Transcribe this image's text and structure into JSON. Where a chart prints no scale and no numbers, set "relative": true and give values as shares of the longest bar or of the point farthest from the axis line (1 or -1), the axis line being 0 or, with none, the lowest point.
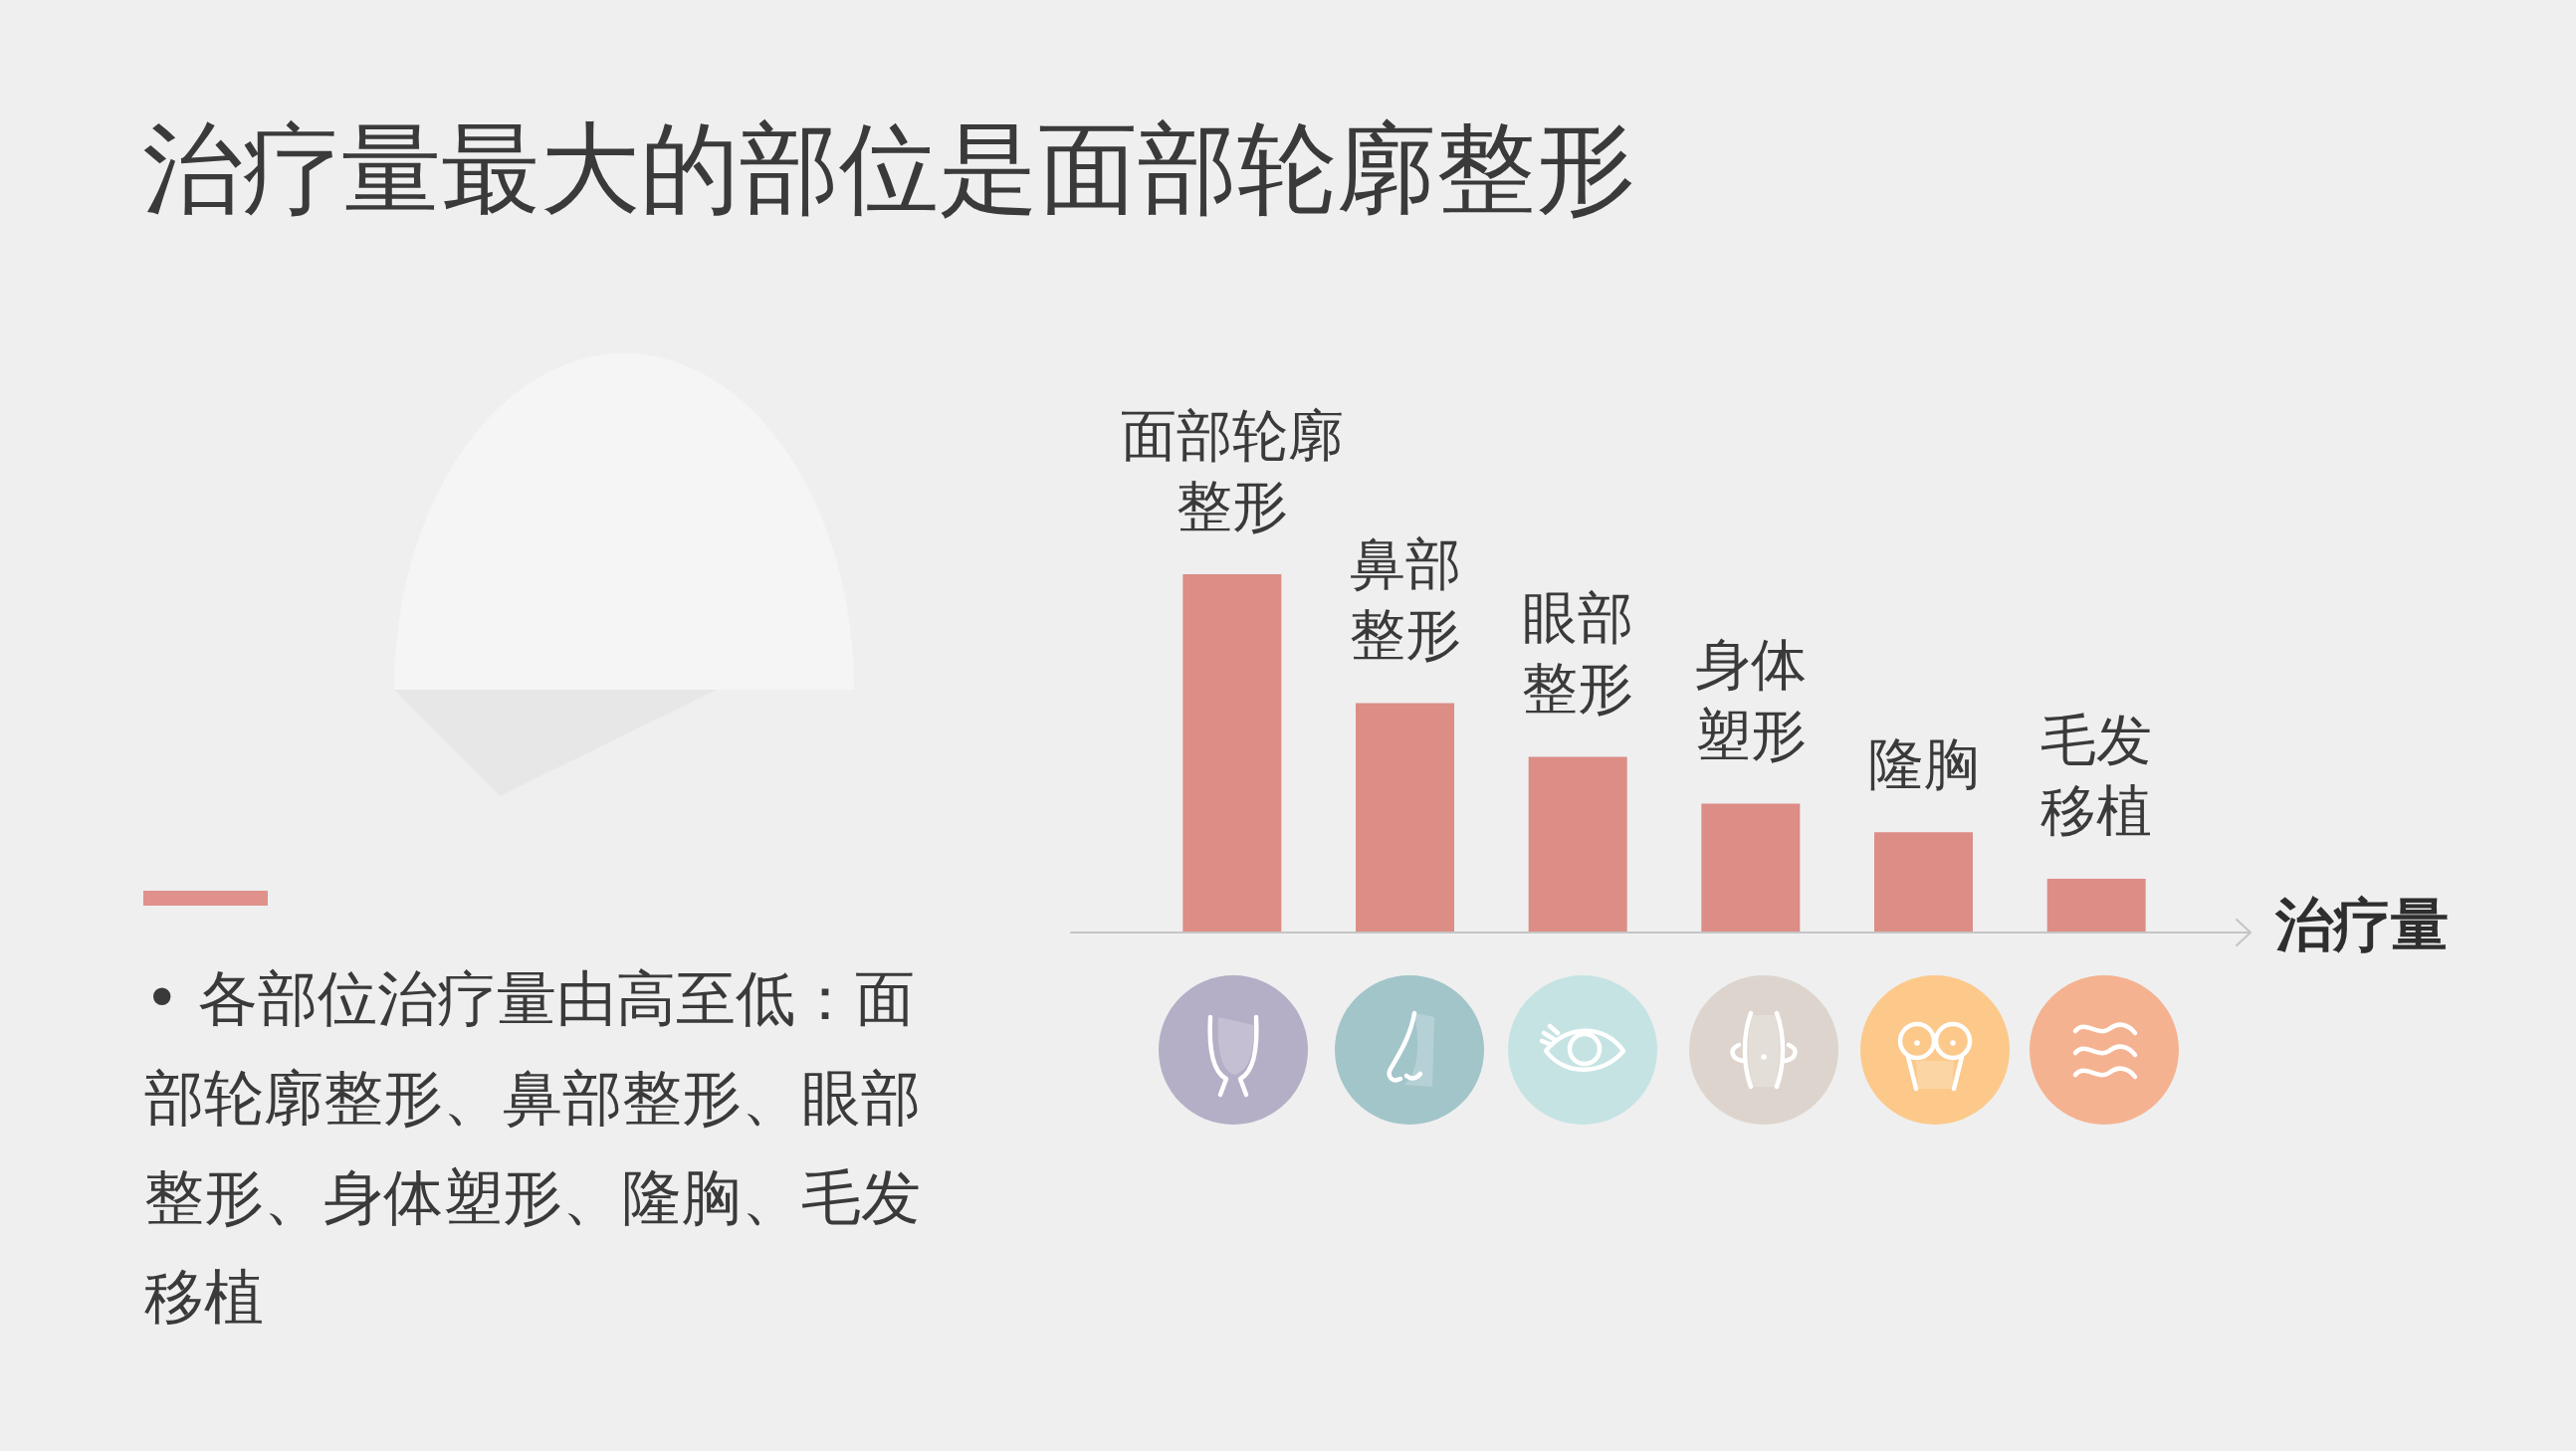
{
  "chart_data": {
    "type": "bar",
    "title": "治疗量最大的部位是面部轮廓整形",
    "xlabel": "治疗量",
    "relative": true,
    "color": "#dc8d86",
    "categories": [
      "面部轮廓整形",
      "鼻部整形",
      "眼部整形",
      "身体塑形",
      "隆胸",
      "毛发移植"
    ],
    "values": [
      1,
      0.64,
      0.49,
      0.36,
      0.28,
      0.15
    ],
    "annotations": [
      "• 各部位治疗量由高至低：面部轮廓整形、鼻部整形、眼部整形、身体塑形、隆胸、毛发移植"
    ]
  }
}
